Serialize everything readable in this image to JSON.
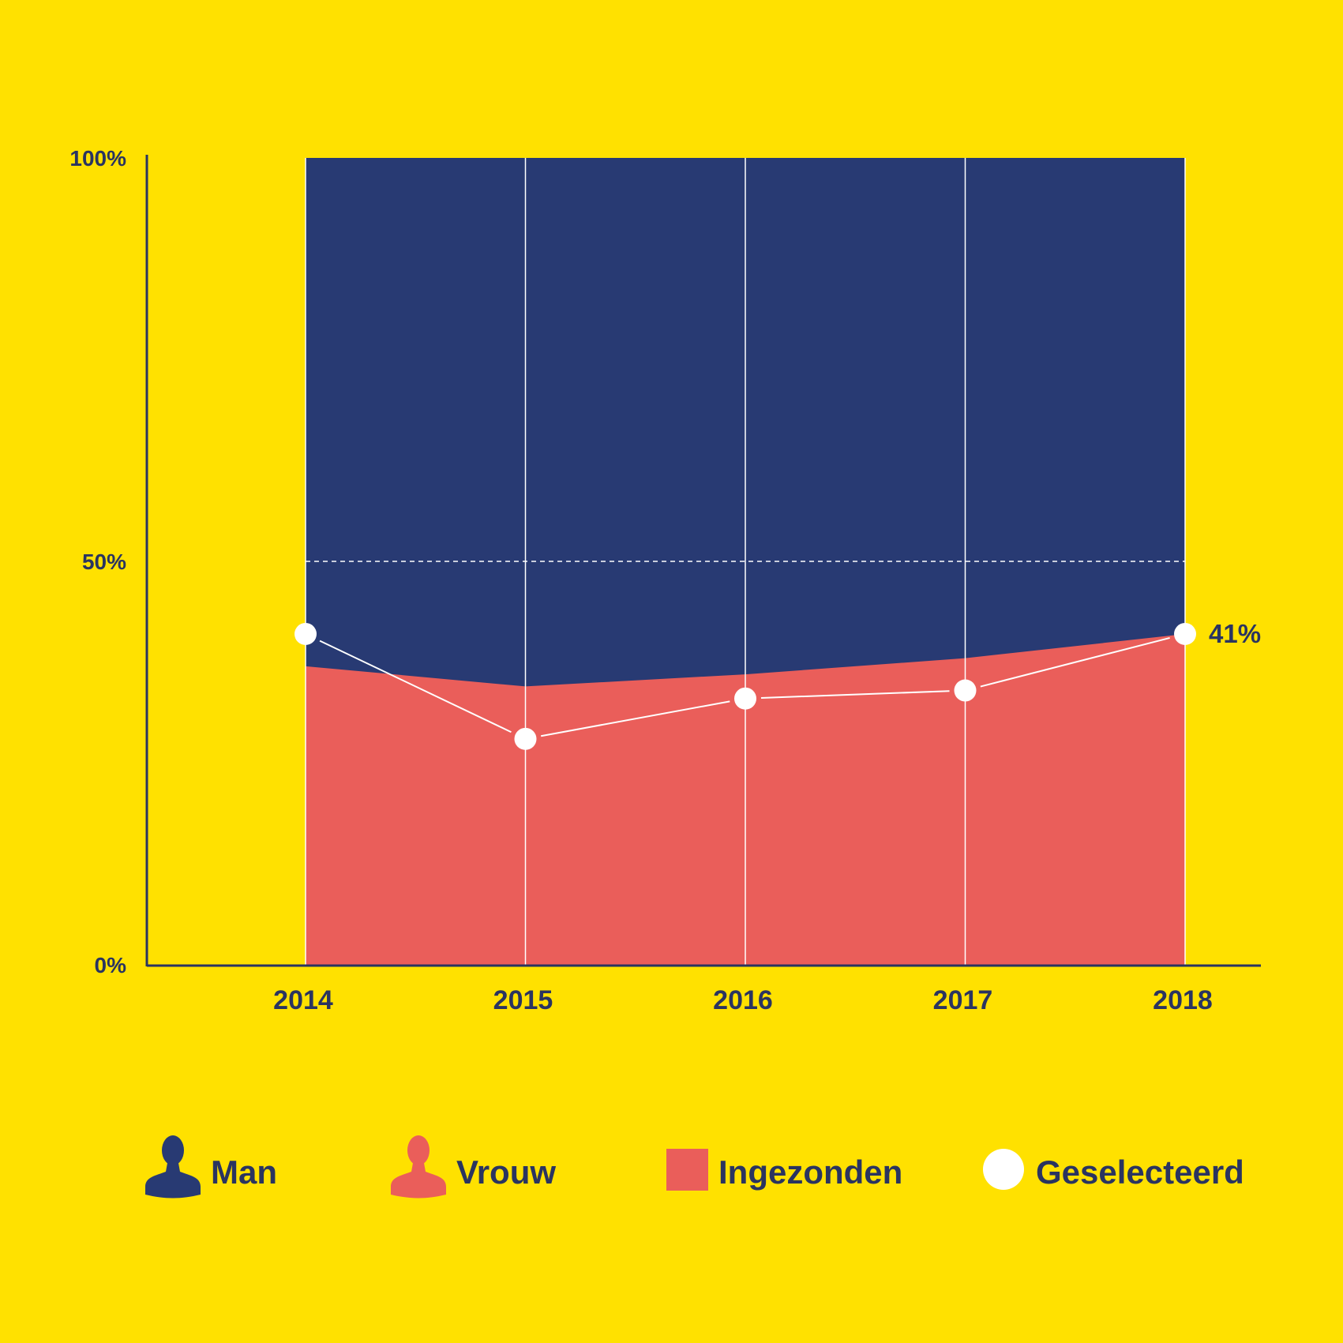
{
  "chart_data": {
    "type": "area",
    "x": [
      2014,
      2015,
      2016,
      2017,
      2018
    ],
    "x_tick_labels": [
      "2014",
      "2015",
      "2016",
      "2017",
      "2018"
    ],
    "y_tick_labels": [
      "100%",
      "50%",
      "0%"
    ],
    "y_ticks": [
      100,
      50,
      0
    ],
    "ylim": [
      0,
      100
    ],
    "reference_line": 50,
    "series": [
      {
        "name": "Ingezonden",
        "values": [
          37,
          34.5,
          36,
          38,
          41
        ]
      },
      {
        "name": "Geselecteerd",
        "values": [
          41,
          28,
          33,
          34,
          41
        ]
      }
    ],
    "end_label": "41%",
    "legend": [
      {
        "label": "Man",
        "icon": "man-icon"
      },
      {
        "label": "Vrouw",
        "icon": "woman-icon"
      },
      {
        "label": "Ingezonden",
        "icon": "square-icon"
      },
      {
        "label": "Geselecteerd",
        "icon": "circle-icon"
      }
    ],
    "legend_position": "bottom",
    "grid": "vertical",
    "colors": {
      "background": "#FFE100",
      "man": "#283A73",
      "vrouw": "#EA5E5A",
      "selected": "#FFFFFF",
      "axis": "#2A3460",
      "text": "#2A3460"
    }
  }
}
